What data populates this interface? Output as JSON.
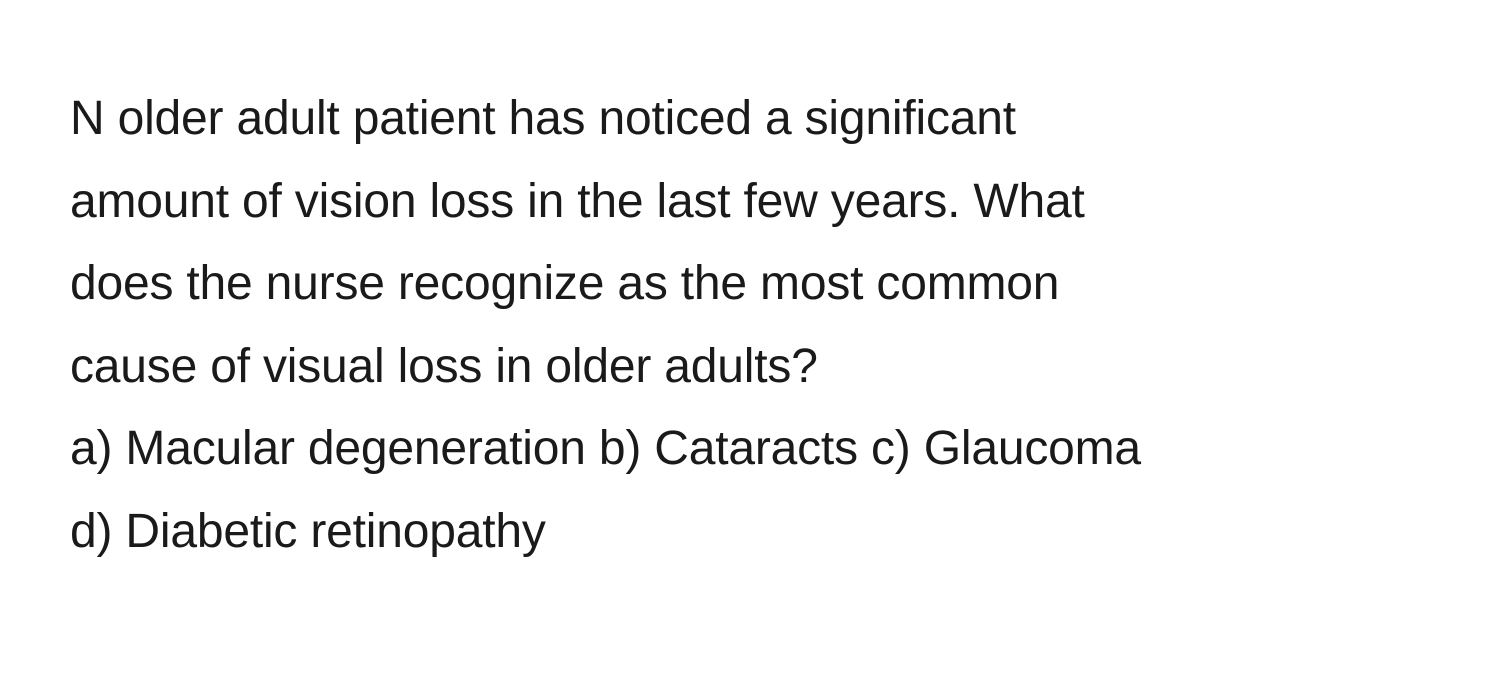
{
  "question": {
    "stem_line1": "N older adult patient has noticed a significant",
    "stem_line2": "amount of vision loss in the last few years. What",
    "stem_line3": "does the nurse recognize as the most common",
    "stem_line4": "cause of visual loss in older adults?",
    "answers_line1": "a) Macular degeneration b) Cataracts c) Glaucoma",
    "answers_line2": "d) Diabetic retinopathy"
  },
  "styling": {
    "background_color": "#ffffff",
    "text_color": "#1a1a1a",
    "font_size": 48,
    "line_height": 1.72,
    "font_weight": 400
  }
}
